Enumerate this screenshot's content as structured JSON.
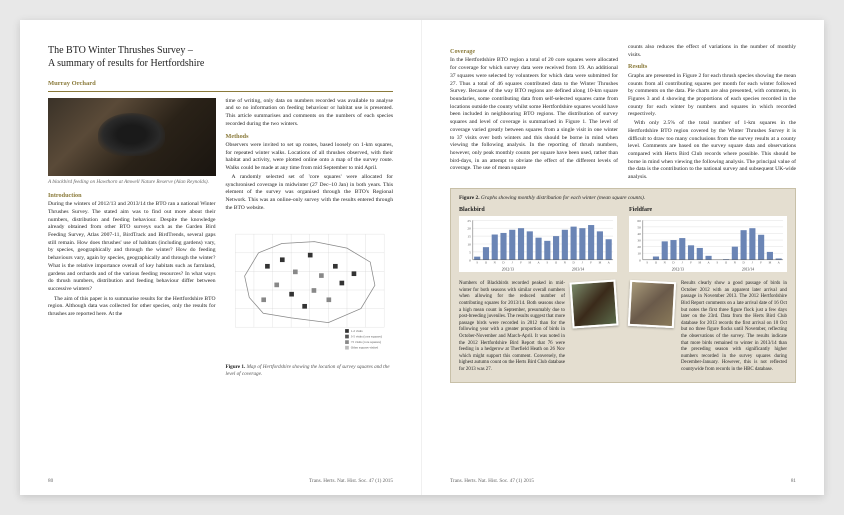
{
  "left": {
    "title_line1": "The BTO Winter Thrushes Survey –",
    "title_line2": "A summary of results for Hertfordshire",
    "author": "Murray Orchard",
    "photo_caption": "A blackbird feeding on Hawthorn at Amwell Nature Reserve (Alan Reynolds).",
    "intro_head": "Introduction",
    "intro_body": "During the winters of 2012/13 and 2013/14 the BTO ran a national Winter Thrushes Survey. The stated aim was to find out more about their numbers, distribution and feeding behaviour. Despite the knowledge already obtained from other BTO surveys such as the Garden Bird Feeding Survey, Atlas 2007-11, BirdTrack and BirdTrends, several gaps still remain. How does thrushes' use of habitats (including gardens) vary, by species, geographically and through the winter? How do feeding behaviours vary, again by species, geographically and through the winter? What is the relative importance overall of key habitats such as farmland, gardens and orchards and of the various feeding resources? In what ways do thrush numbers, distribution and feeding behaviour differ between successive winters?",
    "intro_body2": "The aim of this paper is to summarise results for the Hertfordshire BTO region. Although data was collected for other species, only the results for thrushes are reported here. At the",
    "col2_top": "time of writing, only data on numbers recorded was available to analyse and so no information on feeding behaviour or habitat use is presented. This article summarises and comments on the numbers of each species recorded during the two winters.",
    "methods_head": "Methods",
    "methods_body": "Observers were invited to set up routes, based loosely on 1-km squares, for repeated winter walks. Locations of all thrushes observed, with their habitat and activity, were plotted online onto a map of the survey route. Walks could be made at any time from mid September to mid April.",
    "methods_body2": "A randomly selected set of 'core squares' were allocated for synchronised coverage in midwinter (27 Dec–10 Jan) in both years. This element of the survey was organised through the BTO's Regional Network. This was an online-only survey with the results entered through the BTO website.",
    "fig1_caption_label": "Figure 1.",
    "fig1_caption_text": " Map of Hertfordshire showing the location of survey squares and the level of coverage.",
    "page_num": "80",
    "journal": "Trans. Herts. Nat. Hist. Soc. 47 (1) 2015"
  },
  "right": {
    "coverage_head": "Coverage",
    "coverage_body": "In the Hertfordshire BTO region a total of 20 core squares were allocated for coverage for which survey data were received from 19. An additional 37 squares were selected by volunteers for which data were submitted for 27. Thus a total of 46 squares contributed data to the Winter Thrushes Survey. Because of the way BTO regions are defined along 10-km square boundaries, some contributing data from self-selected squares came from locations outside the county whilst some Hertfordshire squares would have been included in neighbouring BTO regions. The distribution of survey squares and level of coverage is summarised in Figure 1. The level of coverage varied greatly between squares from a single visit in one winter to 37 visits over both winters and this should be borne in mind when viewing the following analysis. In the reporting of thrush numbers, however, only peak monthly counts per square have been used, rather than bird-days, in an attempt to obviate the effect of the different levels of coverage. The use of mean square",
    "coverage_body2": "counts also reduces the effect of variations in the number of monthly visits.",
    "results_head": "Results",
    "results_body": "Graphs are presented in Figure 2 for each thrush species showing the mean counts from all contributing squares per month for each winter followed by comments on the data. Pie charts are also presented, with comments, in Figures 3 and 4 showing the proportions of each species recorded in the county for each winter by numbers and squares in which recorded respectively.",
    "results_body2": "With only 2.5% of the total number of 1-km squares in the Hertfordshire BTO region covered by the Winter Thrushes Survey it is difficult to draw too many conclusions from the survey results at a county level. Comments are based on the survey square data and observations compared with Herts Bird Club records where possible. This should be borne in mind when viewing the following analysis. The principal value of the data is the contribution to the national survey and subsequent UK-wide analysis.",
    "fig2_label": "Figure 2.",
    "fig2_text": " Graphs showing monthly distribution for each winter (mean square counts).",
    "blackbird": {
      "name": "Blackbird",
      "months": [
        "S",
        "O",
        "N",
        "D",
        "J",
        "F",
        "M",
        "A",
        "S",
        "O",
        "N",
        "D",
        "J",
        "F",
        "M",
        "A"
      ],
      "years": [
        "2012/13",
        "2013/14"
      ],
      "values": [
        2,
        8,
        16,
        17,
        19,
        20,
        18,
        14,
        12,
        15,
        19,
        21,
        20,
        22,
        18,
        13
      ],
      "ymax": 25,
      "ystep": 5,
      "bar_color": "#6b85b5",
      "grid_color": "#cccccc",
      "body": "Numbers of Blackbirds recorded peaked in mid-winter for both seasons with similar overall numbers when allowing for the reduced number of contributing squares for 2013/14. Both seasons show a high mean count in September, presumably due to post-breeding juveniles. The results suggest that more passage birds were recorded in 2012 than for the following year with a greater proportion of birds in October-November and March-April. It was noted in the 2012 Hertfordshire Bird Report that 76 were feeding in a hedgerow at Therfield Heath on 26 Nov which might support this comment. Conversely, the highest autumn count on the Herts Bird Club database for 2013 was 27."
    },
    "fieldfare": {
      "name": "Fieldfare",
      "months": [
        "S",
        "O",
        "N",
        "D",
        "J",
        "F",
        "M",
        "A",
        "S",
        "O",
        "N",
        "D",
        "J",
        "F",
        "M",
        "A"
      ],
      "years": [
        "2012/13",
        "2013/14"
      ],
      "values": [
        0,
        5,
        28,
        30,
        33,
        22,
        18,
        6,
        0,
        1,
        20,
        45,
        48,
        38,
        12,
        2
      ],
      "ymax": 60,
      "ystep": 10,
      "bar_color": "#6b85b5",
      "grid_color": "#cccccc",
      "body": "Results clearly show a good passage of birds in October 2012 with an apparent later arrival and passage in November 2013. The 2012 Hertfordshire Bird Report comments on a late arrival date of 16 Oct but notes the first three figure flock just a few days later on the 23rd. Data from the Herts Bird Club database for 2013 records the first arrival on 10 Oct but no three figure flocks until November, reflecting the observations of the survey. The results indicate that more birds remained to winter in 2013/14 than the preceding season with significantly higher numbers recorded in the survey squares during December-January. However, this is not reflected countywide from records in the HBC database."
    },
    "page_num": "81",
    "journal": "Trans. Herts. Nat. Hist. Soc. 47 (1) 2015"
  },
  "map": {
    "outline_color": "#888888",
    "grid_color": "#cccccc",
    "core_color": "#333333",
    "self_color": "#888888",
    "legend": [
      "1-2 visits",
      "3-5 visits (core squares)",
      ">5 visits (core squares)",
      "Other squares visited"
    ]
  }
}
